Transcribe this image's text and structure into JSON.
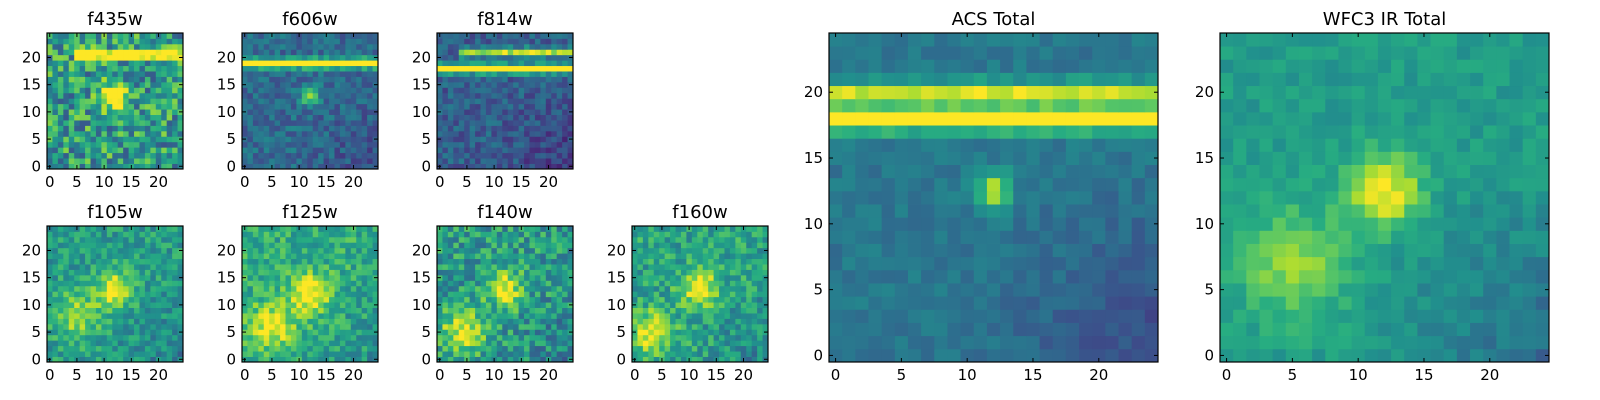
{
  "figure": {
    "colormap": "viridis",
    "colormap_stops": [
      "#440154",
      "#472c7a",
      "#3b518b",
      "#2c718e",
      "#21908d",
      "#27ad81",
      "#5cc863",
      "#aadc32",
      "#fde725"
    ]
  },
  "chart_data": [
    {
      "type": "heatmap",
      "title": "f435w",
      "shape": [
        25,
        25
      ],
      "xticks": [
        0,
        5,
        10,
        15,
        20
      ],
      "yticks": [
        0,
        5,
        10,
        15,
        20
      ],
      "xlim": [
        0,
        24
      ],
      "ylim": [
        0,
        24
      ],
      "origin": "lower",
      "features": [
        {
          "kind": "streak",
          "y": 20.5,
          "x_from": 5,
          "x_to": 24,
          "level": 0.85
        },
        {
          "kind": "blob",
          "x": 12,
          "y": 13,
          "sigma": 1.6,
          "level": 0.8
        }
      ],
      "background_level": 0.55,
      "noise": 0.28,
      "seed": 11
    },
    {
      "type": "heatmap",
      "title": "f606w",
      "shape": [
        25,
        25
      ],
      "xticks": [
        0,
        5,
        10,
        15,
        20
      ],
      "yticks": [
        0,
        5,
        10,
        15,
        20
      ],
      "xlim": [
        0,
        24
      ],
      "ylim": [
        0,
        24
      ],
      "origin": "lower",
      "features": [
        {
          "kind": "streak",
          "y": 19,
          "x_from": 0,
          "x_to": 24,
          "level": 0.95
        },
        {
          "kind": "blob",
          "x": 12,
          "y": 13,
          "sigma": 1.2,
          "level": 0.5
        }
      ],
      "background_level": 0.35,
      "gradient_lower_right": -0.2,
      "noise": 0.12,
      "seed": 23
    },
    {
      "type": "heatmap",
      "title": "f814w",
      "shape": [
        25,
        25
      ],
      "xticks": [
        0,
        5,
        10,
        15,
        20
      ],
      "yticks": [
        0,
        5,
        10,
        15,
        20
      ],
      "xlim": [
        0,
        24
      ],
      "ylim": [
        0,
        24
      ],
      "origin": "lower",
      "features": [
        {
          "kind": "streak",
          "y": 18,
          "x_from": 0,
          "x_to": 24,
          "level": 0.95
        },
        {
          "kind": "streak",
          "y": 21,
          "x_from": 4,
          "x_to": 24,
          "level": 0.6
        }
      ],
      "background_level": 0.3,
      "gradient_lower_right": -0.25,
      "noise": 0.12,
      "seed": 37
    },
    {
      "type": "heatmap",
      "title": "f105w",
      "shape": [
        25,
        25
      ],
      "xticks": [
        0,
        5,
        10,
        15,
        20
      ],
      "yticks": [
        0,
        5,
        10,
        15,
        20
      ],
      "xlim": [
        0,
        24
      ],
      "ylim": [
        0,
        24
      ],
      "origin": "lower",
      "features": [
        {
          "kind": "blob",
          "x": 12,
          "y": 13,
          "sigma": 2.4,
          "level": 0.45
        },
        {
          "kind": "blob",
          "x": 5,
          "y": 8,
          "sigma": 3,
          "level": 0.3
        }
      ],
      "background_level": 0.55,
      "gradient_lower_right": -0.2,
      "noise": 0.15,
      "seed": 41
    },
    {
      "type": "heatmap",
      "title": "f125w",
      "shape": [
        25,
        25
      ],
      "xticks": [
        0,
        5,
        10,
        15,
        20
      ],
      "yticks": [
        0,
        5,
        10,
        15,
        20
      ],
      "xlim": [
        0,
        24
      ],
      "ylim": [
        0,
        24
      ],
      "origin": "lower",
      "features": [
        {
          "kind": "blob",
          "x": 12,
          "y": 12,
          "sigma": 2.5,
          "level": 0.45
        },
        {
          "kind": "blob",
          "x": 5,
          "y": 6,
          "sigma": 3,
          "level": 0.35
        }
      ],
      "background_level": 0.62,
      "gradient_lower_right": -0.2,
      "noise": 0.16,
      "seed": 53
    },
    {
      "type": "heatmap",
      "title": "f140w",
      "shape": [
        25,
        25
      ],
      "xticks": [
        0,
        5,
        10,
        15,
        20
      ],
      "yticks": [
        0,
        5,
        10,
        15,
        20
      ],
      "xlim": [
        0,
        24
      ],
      "ylim": [
        0,
        24
      ],
      "origin": "lower",
      "features": [
        {
          "kind": "blob",
          "x": 12,
          "y": 13,
          "sigma": 2.3,
          "level": 0.45
        },
        {
          "kind": "blob",
          "x": 4,
          "y": 5,
          "sigma": 3,
          "level": 0.35
        }
      ],
      "background_level": 0.55,
      "gradient_lower_right": -0.2,
      "noise": 0.2,
      "seed": 67
    },
    {
      "type": "heatmap",
      "title": "f160w",
      "shape": [
        25,
        25
      ],
      "xticks": [
        0,
        5,
        10,
        15,
        20
      ],
      "yticks": [
        0,
        5,
        10,
        15,
        20
      ],
      "xlim": [
        0,
        24
      ],
      "ylim": [
        0,
        24
      ],
      "origin": "lower",
      "features": [
        {
          "kind": "blob",
          "x": 12,
          "y": 13,
          "sigma": 2.4,
          "level": 0.45
        },
        {
          "kind": "blob",
          "x": 3,
          "y": 5,
          "sigma": 2.6,
          "level": 0.45
        }
      ],
      "background_level": 0.58,
      "gradient_lower_right": -0.2,
      "noise": 0.17,
      "seed": 79
    },
    {
      "type": "heatmap",
      "title": "ACS Total",
      "shape": [
        25,
        25
      ],
      "xticks": [
        0,
        5,
        10,
        15,
        20
      ],
      "yticks": [
        0,
        5,
        10,
        15,
        20
      ],
      "xlim": [
        0,
        24
      ],
      "ylim": [
        0,
        24
      ],
      "origin": "lower",
      "features": [
        {
          "kind": "streak",
          "y": 18,
          "x_from": 0,
          "x_to": 24,
          "level": 0.95
        },
        {
          "kind": "streak",
          "y": 20,
          "x_from": 0,
          "x_to": 24,
          "level": 0.55
        },
        {
          "kind": "blob",
          "x": 12,
          "y": 12.5,
          "sigma": 1.0,
          "level": 0.5
        }
      ],
      "background_level": 0.4,
      "gradient_lower_right": -0.3,
      "noise": 0.06,
      "seed": 91
    },
    {
      "type": "heatmap",
      "title": "WFC3 IR Total",
      "shape": [
        25,
        25
      ],
      "xticks": [
        0,
        5,
        10,
        15,
        20
      ],
      "yticks": [
        0,
        5,
        10,
        15,
        20
      ],
      "xlim": [
        0,
        24
      ],
      "ylim": [
        0,
        24
      ],
      "origin": "lower",
      "features": [
        {
          "kind": "blob",
          "x": 12,
          "y": 12.5,
          "sigma": 2.0,
          "level": 0.45
        },
        {
          "kind": "blob",
          "x": 5,
          "y": 7,
          "sigma": 2.8,
          "level": 0.3
        }
      ],
      "background_level": 0.55,
      "gradient_lower_right": -0.35,
      "noise": 0.07,
      "seed": 103
    }
  ]
}
